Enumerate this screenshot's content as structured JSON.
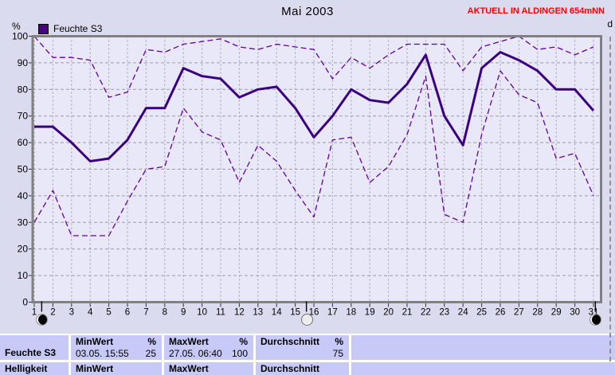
{
  "header": {
    "title": "Mai 2003",
    "status": "AKTUELL IN ALDINGEN 654mNN",
    "status_color": "#FF0000"
  },
  "legend": {
    "label": "Feuchte S3",
    "swatch_color": "#4A0082"
  },
  "side_pane": {
    "label": "d"
  },
  "axes": {
    "y_unit": "%",
    "y_ticks": [
      100,
      90,
      80,
      70,
      60,
      50,
      40,
      30,
      20,
      10,
      0
    ],
    "x_ticks": [
      1,
      2,
      3,
      4,
      5,
      6,
      7,
      8,
      9,
      10,
      11,
      12,
      13,
      14,
      15,
      16,
      17,
      18,
      19,
      20,
      21,
      22,
      23,
      24,
      25,
      26,
      27,
      28,
      29,
      30,
      31
    ]
  },
  "chart_data": {
    "type": "line",
    "title": "Mai 2003",
    "xlabel": "",
    "ylabel": "%",
    "ylim": [
      0,
      100
    ],
    "grid": true,
    "legend_entries": [
      "Feuchte S3"
    ],
    "x": [
      1,
      2,
      3,
      4,
      5,
      6,
      7,
      8,
      9,
      10,
      11,
      12,
      13,
      14,
      15,
      16,
      17,
      18,
      19,
      20,
      21,
      22,
      23,
      24,
      25,
      26,
      27,
      28,
      29,
      30,
      31
    ],
    "series": [
      {
        "name": "max",
        "style": "dashed",
        "values": [
          100,
          92,
          92,
          91,
          77,
          79,
          95,
          94,
          97,
          98,
          99,
          96,
          95,
          97,
          96,
          95,
          84,
          92,
          88,
          93,
          97,
          97,
          97,
          87,
          96,
          98,
          100,
          95,
          96,
          93,
          96
        ]
      },
      {
        "name": "Feuchte S3",
        "style": "solid",
        "values": [
          66,
          66,
          60,
          53,
          54,
          61,
          73,
          73,
          88,
          85,
          84,
          77,
          80,
          81,
          73,
          62,
          70,
          80,
          76,
          75,
          82,
          93,
          70,
          59,
          88,
          94,
          91,
          87,
          80,
          80,
          72
        ]
      },
      {
        "name": "min",
        "style": "dashed",
        "values": [
          30,
          42,
          25,
          25,
          25,
          38,
          50,
          51,
          73,
          64,
          61,
          45,
          59,
          53,
          42,
          32,
          61,
          62,
          45,
          51,
          63,
          85,
          33,
          30,
          63,
          87,
          78,
          75,
          54,
          56,
          40
        ]
      }
    ],
    "colors": {
      "solid": "#3A0082",
      "dashed": "#6000A0",
      "grid": "#9B9BA8",
      "frame": "#808080",
      "plot_bg": "#E8E8F8",
      "tick": "#333333"
    }
  },
  "moon_markers": [
    {
      "day": 1.4,
      "phase": "dark"
    },
    {
      "day": 15.6,
      "phase": "light"
    },
    {
      "day": 31.1,
      "phase": "dark"
    }
  ],
  "table": {
    "sensor_label": "Feuchte S3",
    "next_sensor_partial": "Helligkeit",
    "min": {
      "header": "MinWert",
      "unit": "%",
      "datetime": "03.05.  15:55",
      "value": "25"
    },
    "max": {
      "header": "MaxWert",
      "unit": "%",
      "datetime": "27.05.  06:40",
      "value": "100"
    },
    "avg": {
      "header": "Durchschnitt",
      "unit": "%",
      "value": "75"
    }
  }
}
